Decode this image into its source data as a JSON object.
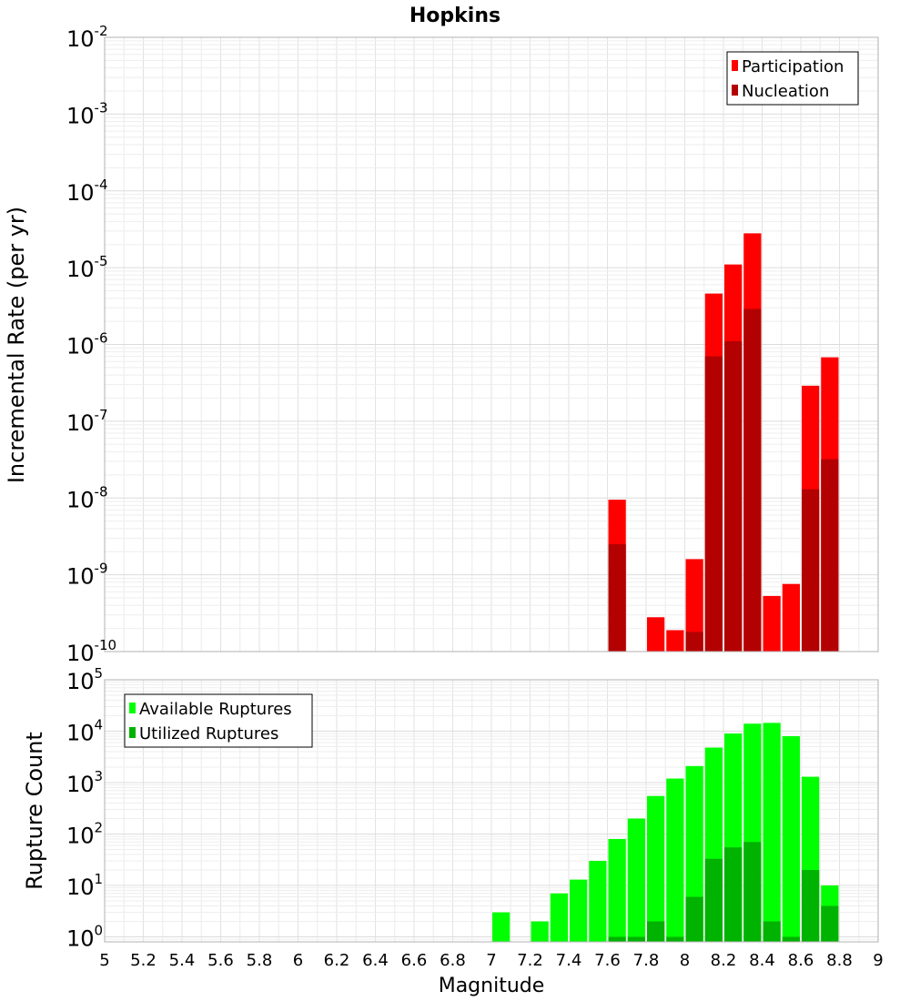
{
  "chart_data": [
    {
      "type": "bar",
      "title": "Hopkins",
      "xlabel": "",
      "ylabel": "Incremental Rate (per yr)",
      "yscale": "log",
      "ylim": [
        1e-10,
        0.01
      ],
      "xlim": [
        5,
        9
      ],
      "bar_width": 0.1,
      "yticks": [
        {
          "base": "10",
          "exp": "-10"
        },
        {
          "base": "10",
          "exp": "-9"
        },
        {
          "base": "10",
          "exp": "-8"
        },
        {
          "base": "10",
          "exp": "-7"
        },
        {
          "base": "10",
          "exp": "-6"
        },
        {
          "base": "10",
          "exp": "-5"
        },
        {
          "base": "10",
          "exp": "-4"
        },
        {
          "base": "10",
          "exp": "-3"
        },
        {
          "base": "10",
          "exp": "-2"
        }
      ],
      "legend_position": "top-right",
      "series": [
        {
          "name": "Participation",
          "color": "#ff0000",
          "x": [
            7.65,
            7.85,
            7.95,
            8.05,
            8.15,
            8.25,
            8.35,
            8.45,
            8.55,
            8.65,
            8.75
          ],
          "values": [
            9.5e-09,
            2.8e-10,
            1.9e-10,
            1.6e-09,
            4.6e-06,
            1.1e-05,
            2.8e-05,
            5.3e-10,
            7.6e-10,
            2.9e-07,
            6.8e-07
          ]
        },
        {
          "name": "Nucleation",
          "color": "#b30000",
          "x": [
            7.65,
            7.95,
            8.05,
            8.15,
            8.25,
            8.35,
            8.65,
            8.75
          ],
          "values": [
            2.5e-09,
            1e-10,
            1.8e-10,
            7e-07,
            1.1e-06,
            2.9e-06,
            1.3e-08,
            3.2e-08
          ]
        }
      ]
    },
    {
      "type": "bar",
      "title": "",
      "xlabel": "Magnitude",
      "ylabel": "Rupture Count",
      "yscale": "log",
      "ylim": [
        0.8,
        100000.0
      ],
      "xlim": [
        5,
        9
      ],
      "bar_width": 0.1,
      "xticks": [
        "5",
        "5.2",
        "5.4",
        "5.6",
        "5.8",
        "6",
        "6.2",
        "6.4",
        "6.6",
        "6.8",
        "7",
        "7.2",
        "7.4",
        "7.6",
        "7.8",
        "8",
        "8.2",
        "8.4",
        "8.6",
        "8.8",
        "9"
      ],
      "yticks": [
        {
          "base": "10",
          "exp": "0"
        },
        {
          "base": "10",
          "exp": "1"
        },
        {
          "base": "10",
          "exp": "2"
        },
        {
          "base": "10",
          "exp": "3"
        },
        {
          "base": "10",
          "exp": "4"
        },
        {
          "base": "10",
          "exp": "5"
        }
      ],
      "legend_position": "top-left",
      "series": [
        {
          "name": "Available Ruptures",
          "color": "#00ff00",
          "x": [
            7.05,
            7.25,
            7.35,
            7.45,
            7.55,
            7.65,
            7.75,
            7.85,
            7.95,
            8.05,
            8.15,
            8.25,
            8.35,
            8.45,
            8.55,
            8.65,
            8.75
          ],
          "values": [
            3,
            2,
            7,
            13,
            30,
            80,
            200,
            550,
            1200,
            2100,
            4800,
            9000,
            14000,
            14500,
            8000,
            1300,
            10
          ]
        },
        {
          "name": "Utilized Ruptures",
          "color": "#00b300",
          "x": [
            7.65,
            7.75,
            7.85,
            7.95,
            8.05,
            8.15,
            8.25,
            8.35,
            8.45,
            8.55,
            8.65,
            8.75
          ],
          "values": [
            1,
            1,
            2,
            1,
            6,
            33,
            55,
            70,
            2,
            1,
            20,
            4
          ]
        }
      ]
    }
  ]
}
